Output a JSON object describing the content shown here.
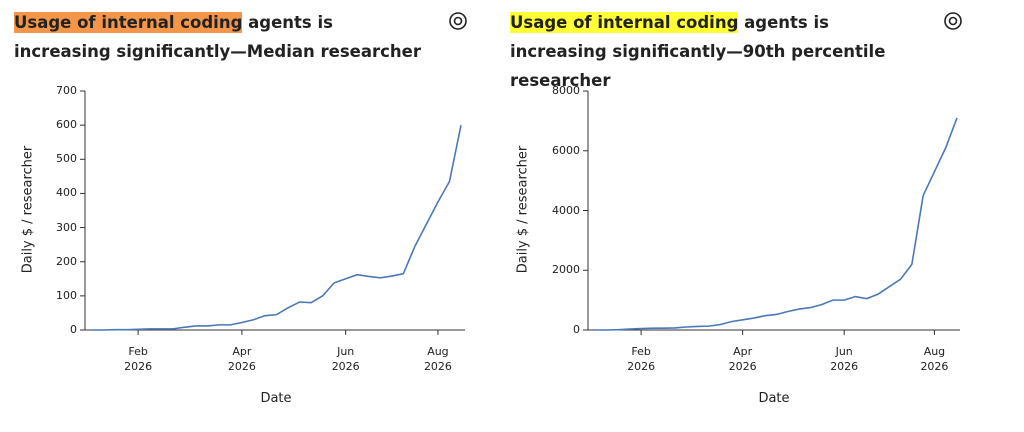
{
  "chart_data": [
    {
      "type": "line",
      "title_highlight": "Usage of internal coding",
      "title_rest": " agents is increasing significantly—Median researcher",
      "highlight_color": "#f4964a",
      "y_label": "Daily $ / researcher",
      "x_label": "Date",
      "categories": [
        null,
        null,
        null,
        null,
        "Feb\n2026",
        null,
        null,
        null,
        null,
        null,
        null,
        null,
        null,
        "Apr\n2026",
        null,
        null,
        null,
        null,
        null,
        null,
        null,
        null,
        "Jun\n2026",
        null,
        null,
        null,
        null,
        null,
        null,
        null,
        "Aug\n2026",
        null,
        null
      ],
      "series": [
        {
          "name": "Median researcher",
          "color": "#4a78b8",
          "values": [
            0,
            0,
            1,
            1,
            2,
            3,
            3,
            3,
            8,
            12,
            12,
            15,
            15,
            22,
            30,
            42,
            45,
            65,
            82,
            80,
            100,
            138,
            150,
            162,
            157,
            153,
            158,
            165,
            245,
            310,
            375,
            435,
            600
          ]
        }
      ],
      "ylim": [
        0,
        700
      ],
      "yticks": [
        0,
        100,
        200,
        300,
        400,
        500,
        600,
        700
      ]
    },
    {
      "type": "line",
      "title_highlight": "Usage of internal coding",
      "title_rest": " agents is increasing significantly—90th percentile researcher",
      "highlight_color": "#ffff33",
      "y_label": "Daily $ / researcher",
      "x_label": "Date",
      "categories": [
        null,
        null,
        null,
        null,
        "Feb\n2026",
        null,
        null,
        null,
        null,
        null,
        null,
        null,
        null,
        "Apr\n2026",
        null,
        null,
        null,
        null,
        null,
        null,
        null,
        null,
        "Jun\n2026",
        null,
        null,
        null,
        null,
        null,
        null,
        null,
        "Aug\n2026",
        null,
        null
      ],
      "series": [
        {
          "name": "90th percentile researcher",
          "color": "#4a78b8",
          "values": [
            0,
            0,
            10,
            30,
            50,
            60,
            60,
            70,
            100,
            120,
            130,
            180,
            280,
            340,
            400,
            480,
            520,
            620,
            700,
            750,
            850,
            1000,
            1000,
            1120,
            1050,
            1200,
            1450,
            1700,
            2200,
            4500,
            5300,
            6100,
            7100
          ]
        }
      ],
      "ylim": [
        0,
        8000
      ],
      "yticks": [
        0,
        2000,
        4000,
        6000,
        8000
      ]
    }
  ]
}
